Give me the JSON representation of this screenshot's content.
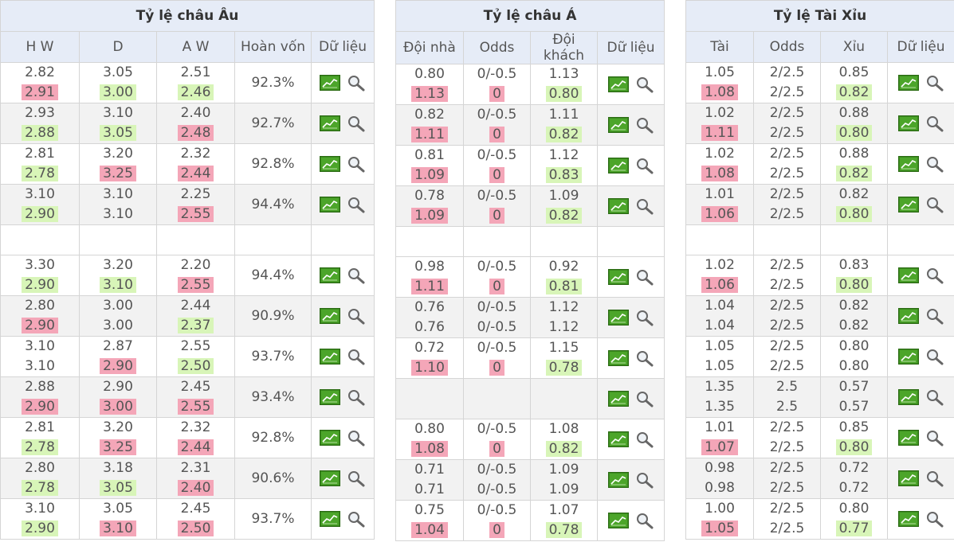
{
  "european": {
    "title": "Tỷ lệ châu Âu",
    "columns": [
      "H W",
      "D",
      "A W",
      "Hoàn vốn",
      "Dữ liệu"
    ],
    "rows": [
      {
        "hw": [
          "2.82",
          "2.91"
        ],
        "d": [
          "3.05",
          "3.00"
        ],
        "aw": [
          "2.51",
          "2.46"
        ],
        "ret": "92.3%",
        "c": [
          "",
          "up",
          "",
          "down",
          "",
          "down"
        ]
      },
      {
        "hw": [
          "2.93",
          "2.88"
        ],
        "d": [
          "3.10",
          "3.05"
        ],
        "aw": [
          "2.40",
          "2.48"
        ],
        "ret": "92.7%",
        "c": [
          "",
          "down",
          "",
          "down",
          "",
          "up"
        ]
      },
      {
        "hw": [
          "2.81",
          "2.78"
        ],
        "d": [
          "3.20",
          "3.25"
        ],
        "aw": [
          "2.32",
          "2.44"
        ],
        "ret": "92.8%",
        "c": [
          "",
          "down",
          "",
          "up",
          "",
          "up"
        ]
      },
      {
        "hw": [
          "3.10",
          "2.90"
        ],
        "d": [
          "3.10",
          "3.10"
        ],
        "aw": [
          "2.25",
          "2.55"
        ],
        "ret": "94.4%",
        "c": [
          "",
          "down",
          "",
          "",
          "",
          "up"
        ]
      },
      null,
      {
        "hw": [
          "3.30",
          "2.90"
        ],
        "d": [
          "3.20",
          "3.10"
        ],
        "aw": [
          "2.20",
          "2.55"
        ],
        "ret": "94.4%",
        "c": [
          "",
          "down",
          "",
          "down",
          "",
          "up"
        ]
      },
      {
        "hw": [
          "2.80",
          "2.90"
        ],
        "d": [
          "3.00",
          "3.00"
        ],
        "aw": [
          "2.44",
          "2.37"
        ],
        "ret": "90.9%",
        "c": [
          "",
          "up",
          "",
          "",
          "",
          "down"
        ]
      },
      {
        "hw": [
          "3.10",
          "3.10"
        ],
        "d": [
          "2.87",
          "2.90"
        ],
        "aw": [
          "2.55",
          "2.50"
        ],
        "ret": "93.7%",
        "c": [
          "",
          "",
          "",
          "up",
          "",
          "down"
        ]
      },
      {
        "hw": [
          "2.88",
          "2.90"
        ],
        "d": [
          "2.90",
          "3.00"
        ],
        "aw": [
          "2.45",
          "2.55"
        ],
        "ret": "93.4%",
        "c": [
          "",
          "up",
          "",
          "up",
          "",
          "up"
        ]
      },
      {
        "hw": [
          "2.81",
          "2.78"
        ],
        "d": [
          "3.20",
          "3.25"
        ],
        "aw": [
          "2.32",
          "2.44"
        ],
        "ret": "92.8%",
        "c": [
          "",
          "down",
          "",
          "up",
          "",
          "up"
        ]
      },
      {
        "hw": [
          "2.80",
          "2.78"
        ],
        "d": [
          "3.18",
          "3.05"
        ],
        "aw": [
          "2.31",
          "2.40"
        ],
        "ret": "90.6%",
        "c": [
          "",
          "down",
          "",
          "down",
          "",
          "up"
        ]
      },
      {
        "hw": [
          "3.10",
          "2.90"
        ],
        "d": [
          "3.05",
          "3.10"
        ],
        "aw": [
          "2.45",
          "2.50"
        ],
        "ret": "93.7%",
        "c": [
          "",
          "down",
          "",
          "up",
          "",
          "up"
        ]
      }
    ]
  },
  "asian": {
    "title": "Tỷ lệ châu Á",
    "columns": [
      "Đội nhà",
      "Odds",
      "Đội khách",
      "Dữ liệu"
    ],
    "rows": [
      {
        "h": [
          "0.80",
          "1.13"
        ],
        "o": [
          "0/-0.5",
          "0"
        ],
        "a": [
          "1.13",
          "0.80"
        ],
        "c": [
          "",
          "up",
          "",
          "up",
          "",
          "down"
        ]
      },
      {
        "h": [
          "0.82",
          "1.11"
        ],
        "o": [
          "0/-0.5",
          "0"
        ],
        "a": [
          "1.11",
          "0.82"
        ],
        "c": [
          "",
          "up",
          "",
          "up",
          "",
          "down"
        ]
      },
      {
        "h": [
          "0.81",
          "1.09"
        ],
        "o": [
          "0/-0.5",
          "0"
        ],
        "a": [
          "1.12",
          "0.83"
        ],
        "c": [
          "",
          "up",
          "",
          "up",
          "",
          "down"
        ]
      },
      {
        "h": [
          "0.78",
          "1.09"
        ],
        "o": [
          "0/-0.5",
          "0"
        ],
        "a": [
          "1.09",
          "0.82"
        ],
        "c": [
          "",
          "up",
          "",
          "up",
          "",
          "down"
        ]
      },
      null,
      {
        "h": [
          "0.98",
          "1.11"
        ],
        "o": [
          "0/-0.5",
          "0"
        ],
        "a": [
          "0.92",
          "0.81"
        ],
        "c": [
          "",
          "up",
          "",
          "up",
          "",
          "down"
        ]
      },
      {
        "h": [
          "0.76",
          "0.76"
        ],
        "o": [
          "0/-0.5",
          "0/-0.5"
        ],
        "a": [
          "1.12",
          "1.12"
        ],
        "c": [
          "",
          "",
          "",
          "",
          "",
          ""
        ]
      },
      {
        "h": [
          "0.72",
          "1.10"
        ],
        "o": [
          "0/-0.5",
          "0"
        ],
        "a": [
          "1.15",
          "0.78"
        ],
        "c": [
          "",
          "up",
          "",
          "up",
          "",
          "down"
        ]
      },
      {
        "h": [
          "",
          ""
        ],
        "o": [
          "",
          ""
        ],
        "a": [
          "",
          ""
        ],
        "c": [
          "",
          "",
          "",
          "",
          "",
          ""
        ],
        "nodata": true
      },
      {
        "h": [
          "0.80",
          "1.08"
        ],
        "o": [
          "0/-0.5",
          "0"
        ],
        "a": [
          "1.08",
          "0.82"
        ],
        "c": [
          "",
          "up",
          "",
          "up",
          "",
          "down"
        ]
      },
      {
        "h": [
          "0.71",
          "0.71"
        ],
        "o": [
          "0/-0.5",
          "0/-0.5"
        ],
        "a": [
          "1.09",
          "1.09"
        ],
        "c": [
          "",
          "",
          "",
          "",
          "",
          ""
        ]
      },
      {
        "h": [
          "0.75",
          "1.04"
        ],
        "o": [
          "0/-0.5",
          "0"
        ],
        "a": [
          "1.07",
          "0.78"
        ],
        "c": [
          "",
          "up",
          "",
          "up",
          "",
          "down"
        ]
      }
    ]
  },
  "overunder": {
    "title": "Tỷ lệ Tài Xỉu",
    "columns": [
      "Tài",
      "Odds",
      "Xỉu",
      "Dữ liệu"
    ],
    "rows": [
      {
        "t": [
          "1.05",
          "1.08"
        ],
        "o": [
          "2/2.5",
          "2/2.5"
        ],
        "x": [
          "0.85",
          "0.82"
        ],
        "c": [
          "",
          "up",
          "",
          "",
          "",
          "down"
        ]
      },
      {
        "t": [
          "1.02",
          "1.11"
        ],
        "o": [
          "2/2.5",
          "2/2.5"
        ],
        "x": [
          "0.88",
          "0.80"
        ],
        "c": [
          "",
          "up",
          "",
          "",
          "",
          "down"
        ]
      },
      {
        "t": [
          "1.02",
          "1.08"
        ],
        "o": [
          "2/2.5",
          "2/2.5"
        ],
        "x": [
          "0.88",
          "0.82"
        ],
        "c": [
          "",
          "up",
          "",
          "",
          "",
          "down"
        ]
      },
      {
        "t": [
          "1.01",
          "1.06"
        ],
        "o": [
          "2/2.5",
          "2/2.5"
        ],
        "x": [
          "0.82",
          "0.80"
        ],
        "c": [
          "",
          "up",
          "",
          "",
          "",
          "down"
        ]
      },
      null,
      {
        "t": [
          "1.02",
          "1.06"
        ],
        "o": [
          "2/2.5",
          "2/2.5"
        ],
        "x": [
          "0.83",
          "0.80"
        ],
        "c": [
          "",
          "up",
          "",
          "",
          "",
          "down"
        ]
      },
      {
        "t": [
          "1.04",
          "1.04"
        ],
        "o": [
          "2/2.5",
          "2/2.5"
        ],
        "x": [
          "0.82",
          "0.82"
        ],
        "c": [
          "",
          "",
          "",
          "",
          "",
          ""
        ]
      },
      {
        "t": [
          "1.05",
          "1.05"
        ],
        "o": [
          "2/2.5",
          "2/2.5"
        ],
        "x": [
          "0.80",
          "0.80"
        ],
        "c": [
          "",
          "",
          "",
          "",
          "",
          ""
        ]
      },
      {
        "t": [
          "1.35",
          "1.35"
        ],
        "o": [
          "2.5",
          "2.5"
        ],
        "x": [
          "0.57",
          "0.57"
        ],
        "c": [
          "",
          "",
          "",
          "",
          "",
          ""
        ]
      },
      {
        "t": [
          "1.01",
          "1.07"
        ],
        "o": [
          "2/2.5",
          "2/2.5"
        ],
        "x": [
          "0.85",
          "0.80"
        ],
        "c": [
          "",
          "up",
          "",
          "",
          "",
          "down"
        ]
      },
      {
        "t": [
          "0.98",
          "0.98"
        ],
        "o": [
          "2/2.5",
          "2/2.5"
        ],
        "x": [
          "0.72",
          "0.72"
        ],
        "c": [
          "",
          "",
          "",
          "",
          "",
          ""
        ]
      },
      {
        "t": [
          "1.00",
          "1.05"
        ],
        "o": [
          "2/2.5",
          "2/2.5"
        ],
        "x": [
          "0.80",
          "0.77"
        ],
        "c": [
          "",
          "up",
          "",
          "",
          "",
          "down"
        ]
      }
    ]
  },
  "icons": {
    "chart": "line-chart-icon",
    "search": "magnifier-icon"
  },
  "colors": {
    "header_bg": "#e6ecf7",
    "up": "#f4a6b8",
    "down": "#d8f5b8",
    "alt_row": "#f2f2f2",
    "chart_icon": "#3a8a1e"
  }
}
